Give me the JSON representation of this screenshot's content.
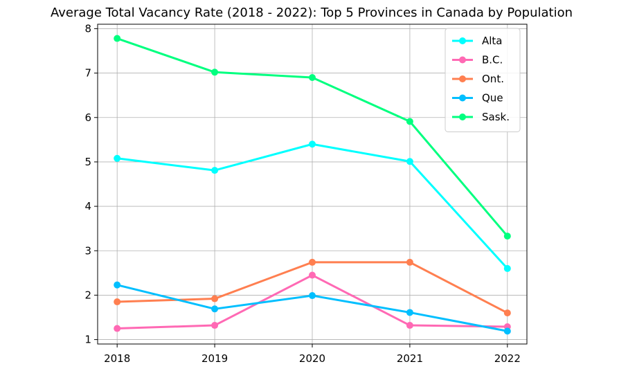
{
  "chart_data": {
    "type": "line",
    "title": "Average Total Vacancy Rate (2018 - 2022): Top 5 Provinces in Canada by Population",
    "xlabel": "",
    "ylabel": "",
    "x": [
      "2018",
      "2019",
      "2020",
      "2021",
      "2022"
    ],
    "xlim": [
      2017.8,
      2022.2
    ],
    "ylim": [
      0.9,
      8.1
    ],
    "yticks": [
      "1",
      "2",
      "3",
      "4",
      "5",
      "6",
      "7",
      "8"
    ],
    "grid": true,
    "legend_position": "top-right",
    "series": [
      {
        "name": "Alta",
        "color": "#00ffff",
        "values": [
          5.08,
          4.81,
          5.4,
          5.01,
          2.6
        ]
      },
      {
        "name": "B.C.",
        "color": "#ff69b4",
        "values": [
          1.25,
          1.32,
          2.45,
          1.32,
          1.29
        ]
      },
      {
        "name": "Ont.",
        "color": "#ff7f50",
        "values": [
          1.85,
          1.92,
          2.74,
          2.74,
          1.6
        ]
      },
      {
        "name": "Que",
        "color": "#00bfff",
        "values": [
          2.23,
          1.69,
          1.99,
          1.61,
          1.19
        ]
      },
      {
        "name": "Sask.",
        "color": "#00ff7f",
        "values": [
          7.78,
          7.02,
          6.9,
          5.91,
          3.33
        ]
      }
    ]
  }
}
